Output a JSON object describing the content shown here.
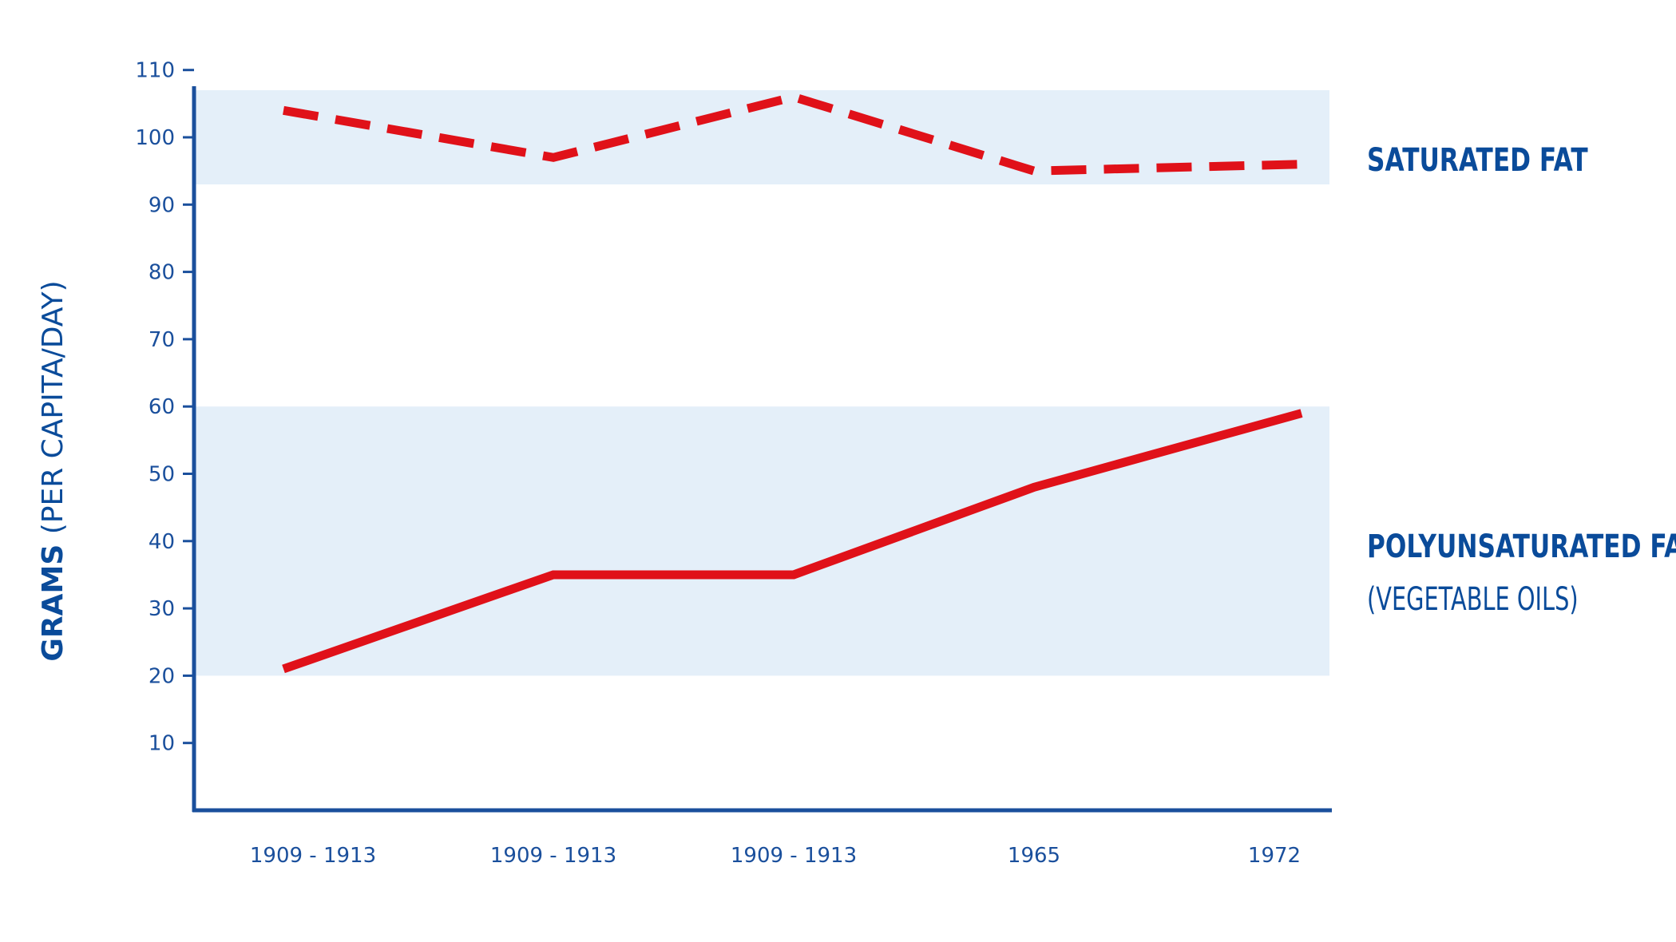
{
  "chart_data": {
    "type": "line",
    "categories": [
      "1909 - 1913",
      "1909 - 1913",
      "1909 - 1913",
      "1965",
      "1972"
    ],
    "ylabel": {
      "main": "GRAMS",
      "sub": "(PER CAPITA/DAY)"
    },
    "yticks": [
      10,
      20,
      30,
      40,
      50,
      60,
      70,
      80,
      90,
      100,
      110
    ],
    "ylim": [
      0,
      110
    ],
    "grid": false,
    "series": [
      {
        "name": "SATURATED FAT",
        "style": "dashed",
        "color": "#e01119",
        "values": [
          104,
          97,
          106,
          95,
          96
        ],
        "band": [
          93,
          107
        ]
      },
      {
        "name": "POLYUNSATURATED FAT",
        "subtitle": "(VEGETABLE OILS)",
        "style": "solid",
        "color": "#e01119",
        "values": [
          21,
          35,
          35,
          48,
          59
        ],
        "band": [
          20,
          60
        ]
      }
    ],
    "colors": {
      "axis": "#1a4f9c",
      "band": "#e4eff9",
      "text": "#0a4b9a"
    }
  }
}
